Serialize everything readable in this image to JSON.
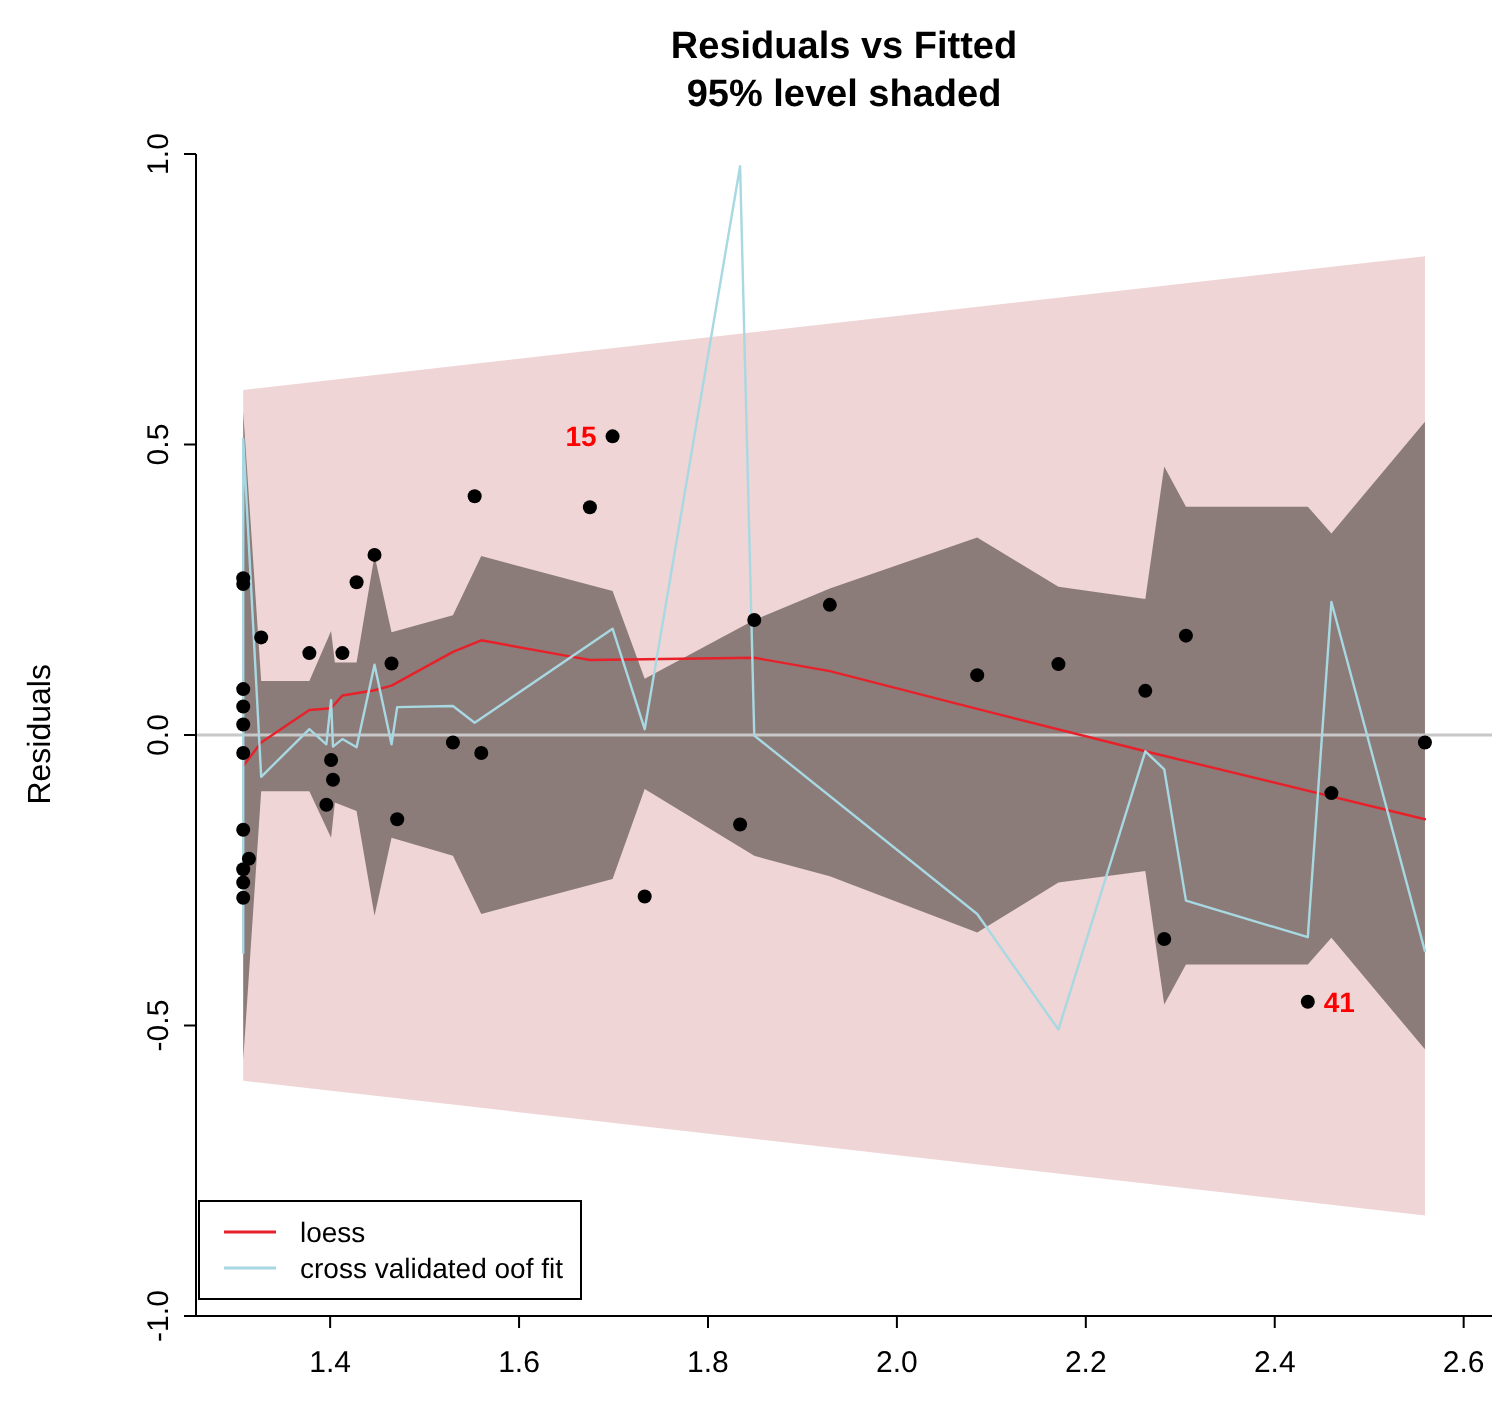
{
  "chart_data": {
    "type": "scatter",
    "title": "Residuals vs Fitted",
    "subtitle": "95% level shaded",
    "ylabel": "Residuals",
    "xlim": [
      1.258,
      2.63
    ],
    "ylim": [
      -1.0,
      1.0
    ],
    "xticks": [
      1.4,
      1.6,
      1.8,
      {
        "value": 2,
        "label": "2.0"
      },
      2.2,
      2.4,
      2.6
    ],
    "yticks": [
      {
        "value": -1,
        "label": "-1.0"
      },
      -0.5,
      {
        "value": 0,
        "label": "0.0"
      },
      0.5,
      {
        "value": 1,
        "label": "1.0"
      }
    ],
    "legend": "bottom left",
    "marker": "circle",
    "ref_lines": [
      {
        "axis": "y",
        "value": 0,
        "color": "#c8c8c8"
      }
    ],
    "annotations": [
      {
        "text": "15",
        "x": 1.699,
        "y": 0.514
      },
      {
        "text": "41",
        "x": 2.435,
        "y": -0.459
      }
    ],
    "series": [
      {
        "type": "area",
        "color": "#efd5d5",
        "x": [
          1.308,
          2.559
        ],
        "values": [
          null,
          null
        ],
        "lower": [
          -0.595,
          -0.827
        ],
        "upper": [
          0.594,
          0.824
        ]
      },
      {
        "type": "area",
        "color": "#8b7c79",
        "x": [
          1.308,
          1.327,
          1.378,
          1.401,
          1.405,
          1.428,
          1.447,
          1.465,
          1.53,
          1.56,
          1.699,
          1.733,
          1.849,
          1.929,
          2.085,
          2.171,
          2.263,
          2.283,
          2.306,
          2.435,
          2.46,
          2.559
        ],
        "values": [
          null,
          null,
          null,
          null,
          null,
          null,
          null,
          null,
          null,
          null,
          null,
          null,
          null,
          null,
          null,
          null,
          null,
          null,
          null,
          null,
          null,
          null
        ],
        "lower": [
          -0.559,
          -0.097,
          -0.097,
          -0.177,
          -0.116,
          -0.131,
          -0.311,
          -0.177,
          -0.208,
          -0.308,
          -0.248,
          -0.093,
          -0.208,
          -0.243,
          -0.34,
          -0.254,
          -0.234,
          -0.464,
          -0.395,
          -0.395,
          -0.349,
          -0.541
        ],
        "upper": [
          0.556,
          0.093,
          0.093,
          0.179,
          0.125,
          0.125,
          0.309,
          0.177,
          0.206,
          0.308,
          0.248,
          0.097,
          0.198,
          0.252,
          0.34,
          0.255,
          0.234,
          0.462,
          0.393,
          0.393,
          0.347,
          0.539
        ]
      },
      {
        "type": "line",
        "name": "loess",
        "color": "#e8202a",
        "marker": "none",
        "x": [
          1.308,
          1.327,
          1.378,
          1.401,
          1.413,
          1.447,
          1.465,
          1.53,
          1.56,
          1.658,
          1.675,
          1.849,
          1.929,
          2.085,
          2.263,
          2.559
        ],
        "values": [
          -0.053,
          -0.013,
          0.043,
          0.046,
          0.068,
          0.077,
          0.085,
          0.143,
          0.163,
          0.134,
          0.129,
          0.133,
          0.11,
          0.045,
          -0.028,
          -0.145
        ]
      },
      {
        "type": "line",
        "name": "cross validated oof fit",
        "color": "#a8d8e2",
        "marker": "none",
        "x": [
          1.308,
          1.308,
          1.327,
          1.378,
          1.396,
          1.401,
          1.403,
          1.413,
          1.428,
          1.447,
          1.465,
          1.471,
          1.53,
          1.553,
          1.699,
          1.733,
          1.834,
          1.849,
          2.085,
          2.171,
          2.263,
          2.283,
          2.306,
          2.435,
          2.46,
          2.559
        ],
        "values": [
          -0.375,
          0.51,
          -0.072,
          0.01,
          -0.016,
          0.06,
          -0.02,
          -0.007,
          -0.021,
          0.121,
          -0.016,
          0.048,
          0.05,
          0.021,
          0.183,
          0.01,
          0.979,
          -0.001,
          -0.308,
          -0.507,
          -0.028,
          -0.059,
          -0.285,
          -0.348,
          0.229,
          -0.372
        ]
      },
      {
        "color": "#000000",
        "x": [
          1.308,
          1.308,
          1.327,
          1.308,
          1.308,
          1.308,
          1.308,
          1.308,
          1.314,
          1.308,
          1.308,
          1.308,
          1.378,
          1.413,
          1.428,
          1.447,
          1.465,
          1.401,
          1.403,
          1.396,
          1.471,
          1.53,
          1.56,
          1.553,
          1.699,
          1.675,
          1.849,
          1.929,
          2.085,
          1.834,
          1.733,
          2.171,
          2.306,
          2.263,
          2.559,
          2.46,
          2.283,
          2.435
        ],
        "values": [
          0.27,
          0.26,
          0.168,
          0.079,
          0.049,
          0.018,
          -0.031,
          -0.163,
          -0.213,
          -0.231,
          -0.254,
          -0.28,
          0.141,
          0.141,
          0.263,
          0.31,
          0.123,
          -0.043,
          -0.077,
          -0.12,
          -0.145,
          -0.013,
          -0.031,
          0.411,
          0.514,
          0.392,
          0.198,
          0.224,
          0.103,
          -0.154,
          -0.278,
          0.122,
          0.171,
          0.076,
          -0.013,
          -0.1,
          -0.351,
          -0.459
        ]
      }
    ]
  }
}
